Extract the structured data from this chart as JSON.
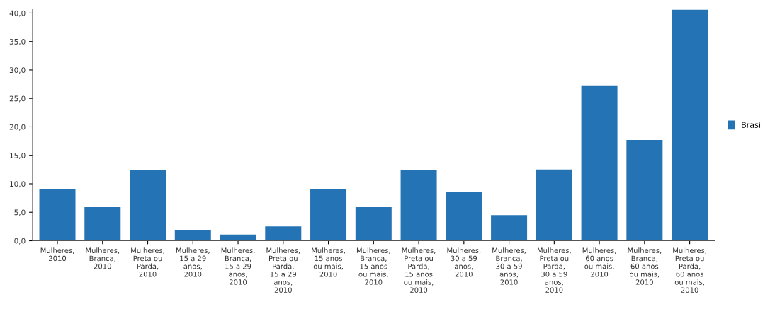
{
  "chart_data": {
    "type": "bar",
    "categories": [
      "Mulheres,\n2010",
      "Mulheres,\nBranca,\n2010",
      "Mulheres,\nPreta ou\nParda,\n2010",
      "Mulheres,\n15 a 29\nanos,\n2010",
      "Mulheres,\nBranca,\n15 a 29\nanos,\n2010",
      "Mulheres,\nPreta ou\nParda,\n15 a 29\nanos,\n2010",
      "Mulheres,\n15 anos\nou mais,\n2010",
      "Mulheres,\nBranca,\n15 anos\nou mais,\n2010",
      "Mulheres,\nPreta ou\nParda,\n15 anos\nou mais,\n2010",
      "Mulheres,\n30 a 59\nanos,\n2010",
      "Mulheres,\nBranca,\n30 a 59\nanos,\n2010",
      "Mulheres,\nPreta ou\nParda,\n30 a 59\nanos,\n2010",
      "Mulheres,\n60 anos\nou mais,\n2010",
      "Mulheres,\nBranca,\n60 anos\nou mais,\n2010",
      "Mulheres,\nPreta ou\nParda,\n60 anos\nou mais,\n2010"
    ],
    "series": [
      {
        "name": "Brasil",
        "color": "#2474b5",
        "values": [
          9.0,
          5.9,
          12.4,
          1.9,
          1.1,
          2.5,
          9.0,
          5.9,
          12.4,
          8.5,
          4.5,
          12.5,
          27.3,
          17.7,
          40.6
        ]
      }
    ],
    "ylim": [
      0,
      40.6
    ],
    "yticks": [
      {
        "value": 0,
        "label": "0,0"
      },
      {
        "value": 5,
        "label": "5,0"
      },
      {
        "value": 10,
        "label": "10,0"
      },
      {
        "value": 15,
        "label": "15,0"
      },
      {
        "value": 20,
        "label": "20,0"
      },
      {
        "value": 25,
        "label": "25,0"
      },
      {
        "value": 30,
        "label": "30,0"
      },
      {
        "value": 35,
        "label": "35,0"
      },
      {
        "value": 40,
        "label": "40,0"
      }
    ],
    "grid": false,
    "legend": "right"
  }
}
